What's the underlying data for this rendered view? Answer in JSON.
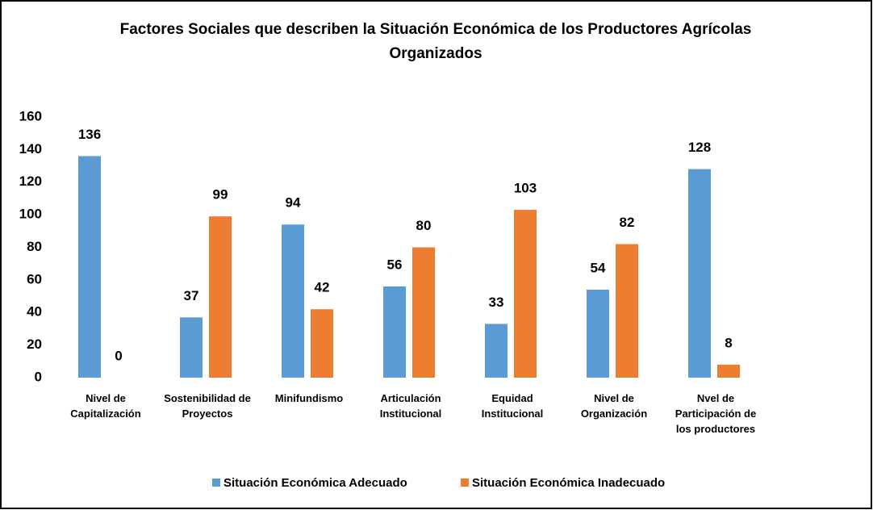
{
  "chart_data": {
    "type": "bar",
    "title": "Factores Sociales que describen la Situación Económica de los Productores Agrícolas\nOrganizados",
    "categories": [
      "Nivel de\nCapitalización",
      "Sostenibilidad de\nProyectos",
      "Minifundismo",
      "Articulación\nInstitucional",
      "Equidad\nInstitucional",
      "Nivel de\nOrganización",
      "Nvel de\nParticipación de\nlos productores"
    ],
    "series": [
      {
        "name": "Situación Económica Adecuado",
        "color": "#5b9bd5",
        "values": [
          136,
          37,
          94,
          56,
          33,
          54,
          128
        ]
      },
      {
        "name": "Situación Económica Inadecuado",
        "color": "#ed7d31",
        "values": [
          0,
          99,
          42,
          80,
          103,
          82,
          8
        ]
      }
    ],
    "ylim": [
      0,
      160
    ],
    "yticks": [
      0,
      20,
      40,
      60,
      80,
      100,
      120,
      140,
      160
    ],
    "legend": "bottom",
    "data_labels": true
  }
}
